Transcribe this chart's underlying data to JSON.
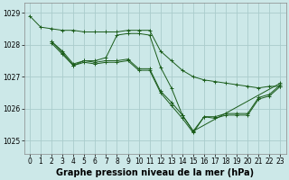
{
  "bg_color": "#cce8e8",
  "grid_color": "#aacccc",
  "line_color": "#1a5c1a",
  "xlabel": "Graphe pression niveau de la mer (hPa)",
  "ylim": [
    1024.6,
    1029.3
  ],
  "xlim": [
    -0.5,
    23.5
  ],
  "yticks": [
    1025,
    1026,
    1027,
    1028,
    1029
  ],
  "xticks": [
    0,
    1,
    2,
    3,
    4,
    5,
    6,
    7,
    8,
    9,
    10,
    11,
    12,
    13,
    14,
    15,
    16,
    17,
    18,
    19,
    20,
    21,
    22,
    23
  ],
  "series": [
    {
      "x": [
        0,
        1,
        2,
        3,
        4,
        5,
        6,
        7,
        8,
        9,
        10,
        11,
        12,
        13,
        14,
        15,
        16,
        17,
        18,
        19,
        20,
        21,
        22,
        23
      ],
      "y": [
        1028.9,
        1028.55,
        1028.5,
        1028.45,
        1028.45,
        1028.4,
        1028.4,
        1028.4,
        1028.4,
        1028.45,
        1028.45,
        1028.45,
        1027.8,
        1027.5,
        1027.2,
        1027.0,
        1026.9,
        1026.85,
        1026.8,
        1026.75,
        1026.7,
        1026.65,
        1026.7,
        1026.7
      ]
    },
    {
      "x": [
        2,
        3,
        4,
        5,
        6,
        7,
        8,
        9,
        10,
        11,
        12,
        13,
        14,
        15,
        23
      ],
      "y": [
        1028.1,
        1027.8,
        1027.4,
        1027.5,
        1027.5,
        1027.6,
        1028.3,
        1028.35,
        1028.35,
        1028.3,
        1027.3,
        1026.65,
        1025.8,
        1025.3,
        1026.8
      ]
    },
    {
      "x": [
        2,
        3,
        4,
        5,
        6,
        7,
        8,
        9,
        10,
        11,
        12,
        13,
        14,
        15,
        16,
        17,
        18,
        19,
        20,
        21,
        22,
        23
      ],
      "y": [
        1028.1,
        1027.75,
        1027.35,
        1027.5,
        1027.45,
        1027.5,
        1027.5,
        1027.55,
        1027.25,
        1027.25,
        1026.55,
        1026.2,
        1025.8,
        1025.3,
        1025.75,
        1025.75,
        1025.85,
        1025.85,
        1025.85,
        1026.35,
        1026.45,
        1026.75
      ]
    },
    {
      "x": [
        2,
        3,
        4,
        5,
        6,
        7,
        8,
        9,
        10,
        11,
        12,
        13,
        14,
        15,
        16,
        17,
        18,
        19,
        20,
        21,
        22,
        23
      ],
      "y": [
        1028.05,
        1027.7,
        1027.35,
        1027.45,
        1027.4,
        1027.45,
        1027.45,
        1027.5,
        1027.2,
        1027.2,
        1026.5,
        1026.1,
        1025.7,
        1025.25,
        1025.75,
        1025.7,
        1025.8,
        1025.8,
        1025.8,
        1026.3,
        1026.4,
        1026.7
      ]
    }
  ],
  "tick_fontsize": 5.5,
  "xlabel_fontsize": 7.0
}
